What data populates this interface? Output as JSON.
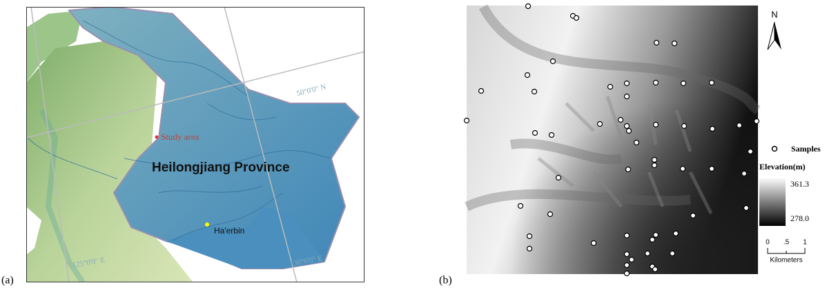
{
  "panel_a": {
    "label": "(a)",
    "latitude_label": "50°0'0\" N",
    "longitude_labels": [
      "125°0'0\" E",
      "130°0'0\" E"
    ],
    "study_area": "Study area",
    "province": "Heilongjiang Province",
    "city": "Ha'erbin"
  },
  "panel_b": {
    "label": "(b)",
    "north": "N",
    "legend": {
      "samples": "Samples",
      "elevation_title": "Elevation(m)",
      "high": "361.3",
      "low": "278.0",
      "scale_ticks": [
        "0",
        ".5",
        "1"
      ],
      "scale_unit": "Kilometers"
    }
  }
}
